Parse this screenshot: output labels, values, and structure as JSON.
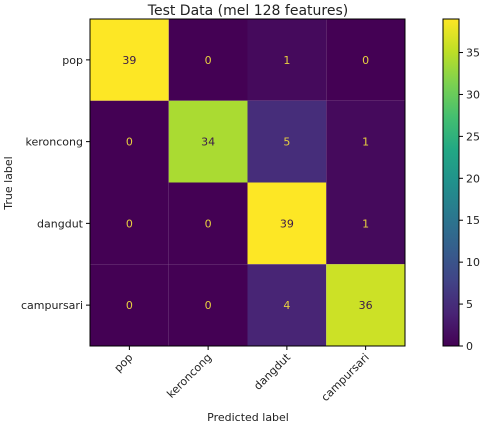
{
  "chart_data": {
    "type": "heatmap",
    "title": "Test Data (mel 128 features)",
    "xlabel": "Predicted label",
    "ylabel": "True label",
    "x_categories": [
      "pop",
      "keroncong",
      "dangdut",
      "campursari"
    ],
    "y_categories": [
      "pop",
      "keroncong",
      "dangdut",
      "campursari"
    ],
    "values": [
      [
        39,
        0,
        1,
        0
      ],
      [
        0,
        34,
        5,
        1
      ],
      [
        0,
        0,
        39,
        1
      ],
      [
        0,
        0,
        4,
        36
      ]
    ],
    "colormap": "viridis",
    "vmin": 0,
    "vmax": 39,
    "colorbar_ticks": [
      0,
      5,
      10,
      15,
      20,
      25,
      30,
      35
    ]
  }
}
